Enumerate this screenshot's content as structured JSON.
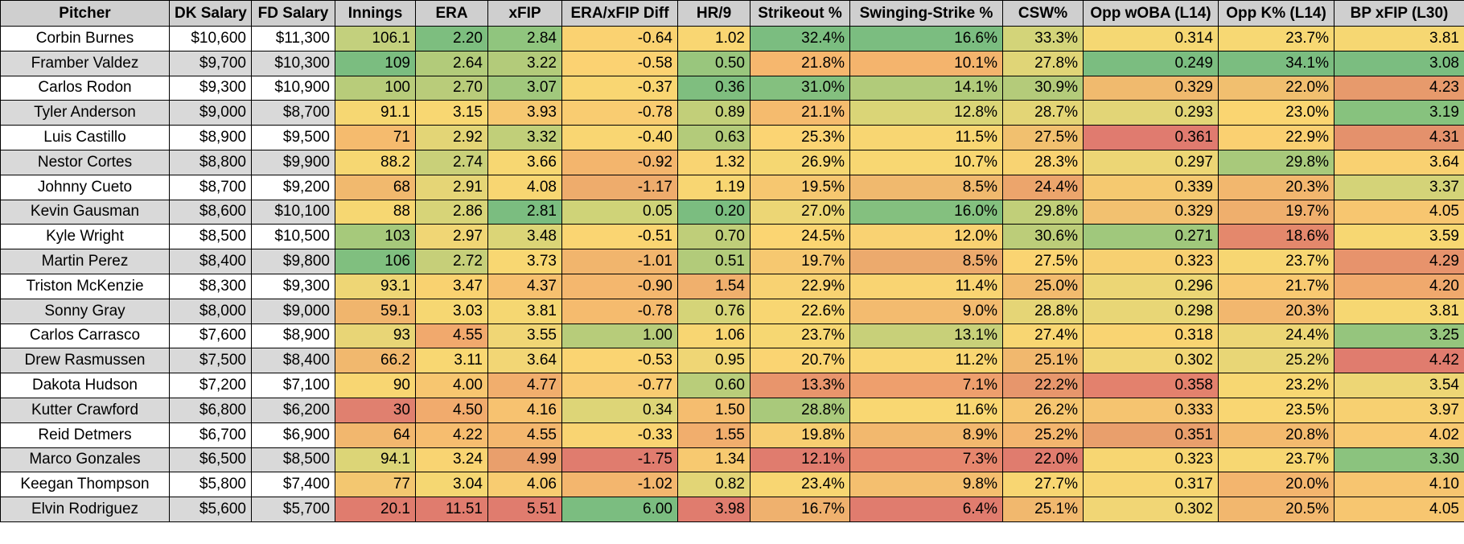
{
  "columns": [
    "Pitcher",
    "DK Salary",
    "FD Salary",
    "Innings",
    "ERA",
    "xFIP",
    "ERA/xFIP Diff",
    "HR/9",
    "Strikeout %",
    "Swinging-Strike %",
    "CSW%",
    "Opp wOBA (L14)",
    "Opp K% (L14)",
    "BP xFIP (L30)"
  ],
  "rows": [
    {
      "cells": [
        "Corbin Burnes",
        "$10,600",
        "$11,300",
        "106.1",
        "2.20",
        "2.84",
        "-0.64",
        "1.02",
        "32.4%",
        "16.6%",
        "33.3%",
        "0.314",
        "23.7%",
        "3.81"
      ],
      "colors": [
        "#c3d07d",
        "#7dbe7f",
        "#90c57e",
        "#fad271",
        "#f9d672",
        "#7bbd80",
        "#7bbd80",
        "#d3d479",
        "#f5d873",
        "#f7d873",
        "#f6d772"
      ]
    },
    {
      "cells": [
        "Framber Valdez",
        "$9,700",
        "$10,300",
        "109",
        "2.64",
        "3.22",
        "-0.58",
        "0.50",
        "21.8%",
        "10.1%",
        "27.8%",
        "0.249",
        "34.1%",
        "3.08"
      ],
      "colors": [
        "#7bbd80",
        "#b2cb7a",
        "#b3cb7a",
        "#fbd272",
        "#99c67d",
        "#f6b76e",
        "#f4b46d",
        "#e0d577",
        "#7bbd80",
        "#7bbd80",
        "#7bbd80"
      ]
    },
    {
      "cells": [
        "Carlos Rodon",
        "$9,300",
        "$10,900",
        "100",
        "2.70",
        "3.07",
        "-0.37",
        "0.36",
        "31.0%",
        "14.1%",
        "30.9%",
        "0.329",
        "22.0%",
        "4.23"
      ],
      "colors": [
        "#b8cc7a",
        "#b9cc7a",
        "#a1c87c",
        "#f9d672",
        "#7fbe7f",
        "#84c07f",
        "#b1cb7a",
        "#b4cb7a",
        "#f0ba6e",
        "#f1bf6f",
        "#e79a6c"
      ]
    },
    {
      "cells": [
        "Tyler Anderson",
        "$9,000",
        "$8,700",
        "91.1",
        "3.15",
        "3.93",
        "-0.78",
        "0.89",
        "21.1%",
        "12.8%",
        "28.7%",
        "0.293",
        "23.0%",
        "3.19"
      ],
      "colors": [
        "#f6d772",
        "#f8d772",
        "#f6c870",
        "#f9cc71",
        "#c2cf79",
        "#f5bb6e",
        "#dad577",
        "#e3d576",
        "#e2d577",
        "#fad571",
        "#87c27e"
      ]
    },
    {
      "cells": [
        "Luis Castillo",
        "$8,900",
        "$9,500",
        "71",
        "2.92",
        "3.32",
        "-0.40",
        "0.63",
        "25.3%",
        "11.5%",
        "27.5%",
        "0.361",
        "22.9%",
        "4.31"
      ],
      "colors": [
        "#f5bb6e",
        "#e3d576",
        "#c1cf79",
        "#f9d672",
        "#b3cb7a",
        "#fbd473",
        "#f8d672",
        "#f1c06f",
        "#e07b6f",
        "#fad071",
        "#e4916c"
      ]
    },
    {
      "cells": [
        "Nestor Cortes",
        "$8,800",
        "$9,900",
        "88.2",
        "2.74",
        "3.66",
        "-0.92",
        "1.32",
        "26.9%",
        "10.7%",
        "28.3%",
        "0.297",
        "29.8%",
        "3.64"
      ],
      "colors": [
        "#f6d772",
        "#c9d079",
        "#f7d772",
        "#f3b56d",
        "#f9d472",
        "#f5d772",
        "#f8d772",
        "#f8d372",
        "#ecd675",
        "#a8c97b",
        "#f9d171"
      ]
    },
    {
      "cells": [
        "Johnny Cueto",
        "$8,700",
        "$9,200",
        "68",
        "2.91",
        "4.08",
        "-1.17",
        "1.19",
        "19.5%",
        "8.5%",
        "24.4%",
        "0.339",
        "20.3%",
        "3.37"
      ],
      "colors": [
        "#f1b96e",
        "#e5d576",
        "#f8d672",
        "#eeac6c",
        "#f8d672",
        "#f6c770",
        "#f0b96e",
        "#eca56c",
        "#f5c970",
        "#f2b76e",
        "#d4d378"
      ]
    },
    {
      "cells": [
        "Kevin Gausman",
        "$8,600",
        "$10,100",
        "88",
        "2.86",
        "2.81",
        "0.05",
        "0.20",
        "27.0%",
        "16.0%",
        "29.8%",
        "0.329",
        "19.7%",
        "4.05"
      ],
      "colors": [
        "#f6d772",
        "#d7d478",
        "#7bbd80",
        "#cfd378",
        "#7bbd80",
        "#ecd675",
        "#84c07f",
        "#c1cf79",
        "#f2c170",
        "#efaf6d",
        "#f7c670"
      ]
    },
    {
      "cells": [
        "Kyle Wright",
        "$8,500",
        "$10,500",
        "103",
        "2.97",
        "3.48",
        "-0.51",
        "0.70",
        "24.5%",
        "12.0%",
        "30.6%",
        "0.271",
        "18.6%",
        "3.59"
      ],
      "colors": [
        "#a6c97b",
        "#f0d675",
        "#dbd577",
        "#fad572",
        "#bfce79",
        "#fbd572",
        "#f9d272",
        "#bccd79",
        "#a0c87c",
        "#e4886c",
        "#f7d772"
      ]
    },
    {
      "cells": [
        "Martin Perez",
        "$8,400",
        "$9,800",
        "106",
        "2.72",
        "3.73",
        "-1.01",
        "0.51",
        "19.7%",
        "8.5%",
        "27.5%",
        "0.323",
        "23.7%",
        "4.29"
      ],
      "colors": [
        "#80bf7f",
        "#c6cf79",
        "#f8d772",
        "#f1b56d",
        "#b2cb7a",
        "#f6c870",
        "#ecaa6d",
        "#fad472",
        "#f7d071",
        "#f7d672",
        "#e7936c"
      ]
    },
    {
      "cells": [
        "Triston McKenzie",
        "$8,300",
        "$9,300",
        "93.1",
        "3.47",
        "4.37",
        "-0.90",
        "1.54",
        "22.9%",
        "11.4%",
        "25.0%",
        "0.296",
        "21.7%",
        "4.20"
      ],
      "colors": [
        "#eed675",
        "#f9d270",
        "#f6c06f",
        "#f4b76e",
        "#f0b06d",
        "#f8d272",
        "#f9d472",
        "#f2bb6e",
        "#ecd675",
        "#f8c971",
        "#f0a96d"
      ]
    },
    {
      "cells": [
        "Sonny Gray",
        "$8,000",
        "$9,000",
        "59.1",
        "3.03",
        "3.81",
        "-0.78",
        "0.76",
        "22.6%",
        "9.0%",
        "28.8%",
        "0.298",
        "20.3%",
        "3.81"
      ],
      "colors": [
        "#f0b56d",
        "#f6d772",
        "#f5d772",
        "#f5bb6e",
        "#d5d478",
        "#f8d672",
        "#f3bb6f",
        "#e5d576",
        "#e8d676",
        "#f2b76e",
        "#f6d772"
      ]
    },
    {
      "cells": [
        "Carlos Carrasco",
        "$7,600",
        "$8,900",
        "93",
        "4.55",
        "3.55",
        "1.00",
        "1.06",
        "23.7%",
        "13.1%",
        "27.4%",
        "0.318",
        "24.4%",
        "3.25"
      ],
      "colors": [
        "#e8d576",
        "#f1a96d",
        "#f0d675",
        "#b7cc7a",
        "#f8d672",
        "#f6d772",
        "#c8d079",
        "#f8d672",
        "#f9d472",
        "#ecd675",
        "#95c57d"
      ]
    },
    {
      "cells": [
        "Drew Rasmussen",
        "$7,500",
        "$8,400",
        "66.2",
        "3.11",
        "3.64",
        "-0.53",
        "0.95",
        "20.7%",
        "11.2%",
        "25.1%",
        "0.302",
        "25.2%",
        "4.42"
      ],
      "colors": [
        "#f1b86e",
        "#f8d772",
        "#f2d675",
        "#fad472",
        "#efd675",
        "#fad472",
        "#f9d672",
        "#f1b86e",
        "#f1d675",
        "#e8d676",
        "#e07c6e"
      ]
    },
    {
      "cells": [
        "Dakota Hudson",
        "$7,200",
        "$7,100",
        "90",
        "4.00",
        "4.77",
        "-0.77",
        "0.60",
        "13.3%",
        "7.1%",
        "22.2%",
        "0.358",
        "23.2%",
        "3.54"
      ],
      "colors": [
        "#f8d672",
        "#f7c670",
        "#f1ae6d",
        "#f9cb71",
        "#b9cd7a",
        "#e8956c",
        "#ee9f6d",
        "#e7966c",
        "#e3816d",
        "#f7d772",
        "#edd675"
      ]
    },
    {
      "cells": [
        "Kutter Crawford",
        "$6,800",
        "$6,200",
        "30",
        "4.50",
        "4.16",
        "0.34",
        "1.50",
        "28.8%",
        "11.6%",
        "26.2%",
        "0.333",
        "23.5%",
        "3.97"
      ],
      "colors": [
        "#e0806f",
        "#f1ab6d",
        "#f7c270",
        "#ddd577",
        "#f5bd6f",
        "#a9c97b",
        "#f9d772",
        "#f6c670",
        "#f5c470",
        "#f9d672",
        "#f7d071"
      ]
    },
    {
      "cells": [
        "Reid Detmers",
        "$6,700",
        "$6,900",
        "64",
        "4.22",
        "4.55",
        "-0.33",
        "1.55",
        "19.8%",
        "8.9%",
        "25.2%",
        "0.351",
        "20.8%",
        "4.02"
      ],
      "colors": [
        "#f2b76e",
        "#f6bd6f",
        "#f4b76e",
        "#f9d472",
        "#f1ae6d",
        "#f7ce71",
        "#f2b86e",
        "#f3b56e",
        "#e99f6c",
        "#f3ba6e",
        "#f8c971"
      ]
    },
    {
      "cells": [
        "Marco Gonzales",
        "$6,500",
        "$8,500",
        "94.1",
        "3.24",
        "4.99",
        "-1.75",
        "1.34",
        "12.1%",
        "7.3%",
        "22.0%",
        "0.323",
        "23.7%",
        "3.30"
      ],
      "colors": [
        "#dcd577",
        "#f9d472",
        "#e99f6c",
        "#e07c6e",
        "#f7c970",
        "#e07c6e",
        "#e6866d",
        "#e07c6e",
        "#f7d672",
        "#f7d772",
        "#8bc37e"
      ]
    },
    {
      "cells": [
        "Keegan Thompson",
        "$5,800",
        "$7,400",
        "77",
        "3.04",
        "4.06",
        "-1.02",
        "0.82",
        "23.4%",
        "9.8%",
        "27.7%",
        "0.317",
        "20.0%",
        "4.10"
      ],
      "colors": [
        "#f3c770",
        "#f5d772",
        "#f8cc71",
        "#f3b66e",
        "#e2d576",
        "#f8d672",
        "#f4bf6f",
        "#f8d672",
        "#f7d672",
        "#f3b56e",
        "#f7c570"
      ]
    },
    {
      "cells": [
        "Elvin Rodriguez",
        "$5,600",
        "$5,700",
        "20.1",
        "11.51",
        "5.51",
        "6.00",
        "3.98",
        "16.7%",
        "6.4%",
        "25.1%",
        "0.302",
        "20.5%",
        "4.05"
      ],
      "colors": [
        "#e07c6e",
        "#e07c6e",
        "#e07c6e",
        "#7bbd80",
        "#e07c6e",
        "#efb16e",
        "#e07c6e",
        "#f1b86e",
        "#f1d675",
        "#f2b76e",
        "#f7c670"
      ]
    }
  ]
}
